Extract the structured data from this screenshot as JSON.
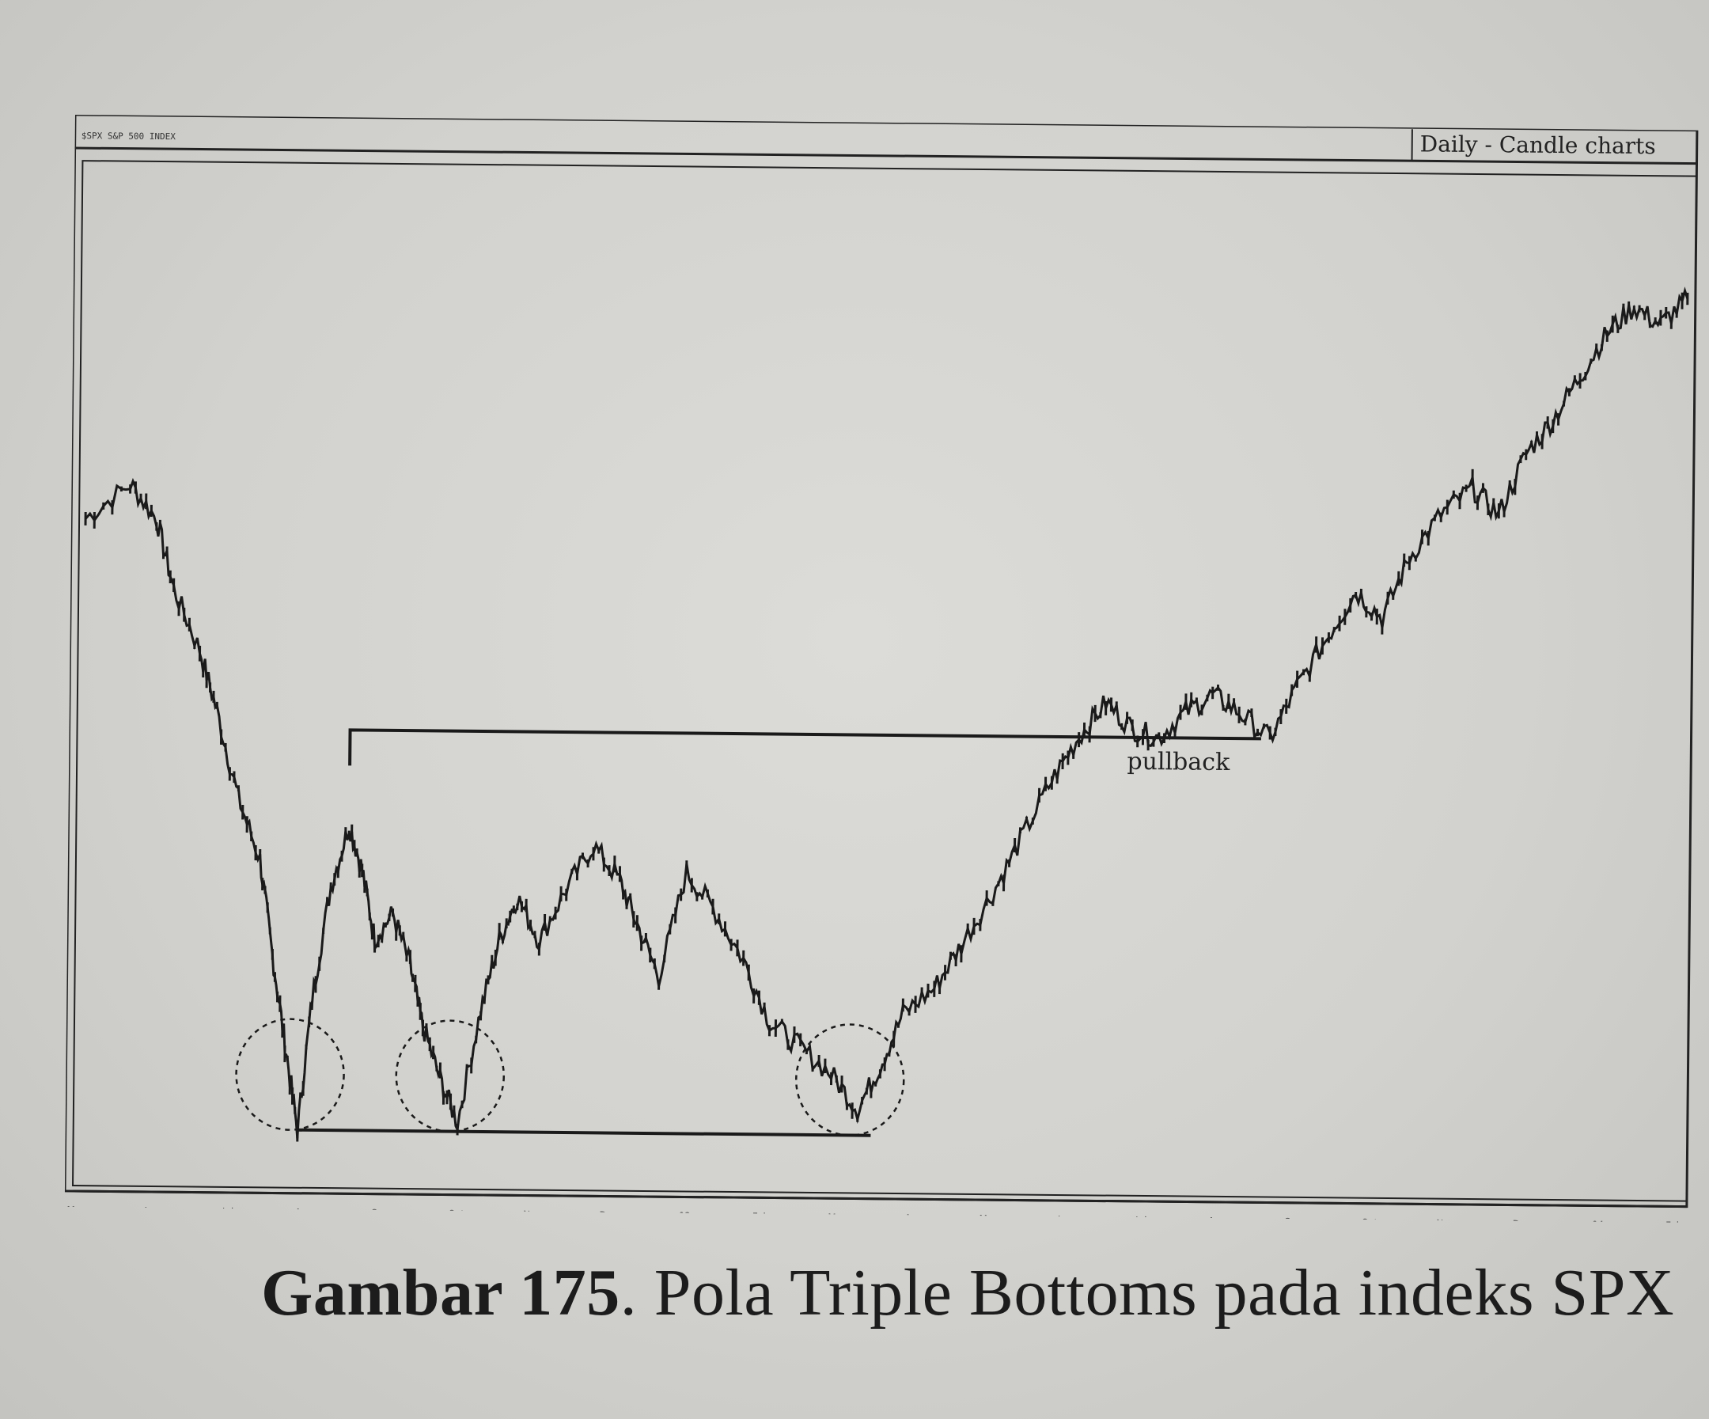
{
  "header": {
    "window_title": "$SPX S&P 500 INDEX",
    "chart_mode": "Daily - Candle charts"
  },
  "annotations": {
    "pullback": "pullback"
  },
  "caption": {
    "label": "Gambar 175",
    "text": ". Pola Triple Bottoms pada indeks SPX"
  },
  "colors": {
    "ink": "#1a1a1a",
    "paper": "#d6d6d2"
  },
  "chart_data": {
    "type": "line",
    "title": "",
    "xlabel": "",
    "ylabel": "",
    "categories": [
      "Mar",
      "Jun",
      "Jul",
      "Aug",
      "Sep",
      "Oct",
      "Nov",
      "Dec",
      "03",
      "Feb",
      "Mar",
      "Apr",
      "May",
      "Jun",
      "Jul",
      "Aug",
      "Sep",
      "Oct",
      "Nov",
      "Dec",
      "04",
      "Feb"
    ],
    "ylim": [
      0,
      100
    ],
    "grid": false,
    "series": [
      {
        "values": [
          [
            0,
            70
          ],
          [
            1,
            74
          ],
          [
            1.6,
            70
          ],
          [
            2,
            62
          ],
          [
            2.6,
            55
          ],
          [
            3,
            48
          ],
          [
            3.5,
            38
          ],
          [
            4,
            31
          ],
          [
            4.3,
            20
          ],
          [
            4.6,
            10
          ],
          [
            4.9,
            0
          ],
          [
            5.2,
            15
          ],
          [
            5.6,
            28
          ],
          [
            6,
            35
          ],
          [
            6.3,
            30
          ],
          [
            6.6,
            22
          ],
          [
            7,
            25
          ],
          [
            7.4,
            19
          ],
          [
            7.7,
            12
          ],
          [
            8.1,
            6
          ],
          [
            8.5,
            1
          ],
          [
            9,
            14
          ],
          [
            9.4,
            22
          ],
          [
            9.8,
            27
          ],
          [
            10.3,
            22
          ],
          [
            10.9,
            28
          ],
          [
            11.5,
            33
          ],
          [
            12.1,
            29
          ],
          [
            12.5,
            24
          ],
          [
            13,
            18
          ],
          [
            13.6,
            30
          ],
          [
            14.2,
            26
          ],
          [
            14.9,
            20
          ],
          [
            15.5,
            13
          ],
          [
            16.2,
            10
          ],
          [
            16.9,
            7
          ],
          [
            17.5,
            3
          ],
          [
            18,
            8
          ],
          [
            18.5,
            14
          ],
          [
            19.2,
            17
          ],
          [
            19.8,
            22
          ],
          [
            20.5,
            28
          ],
          [
            21.1,
            34
          ],
          [
            21.8,
            41
          ],
          [
            22.4,
            46
          ],
          [
            23,
            50
          ],
          [
            23.6,
            47
          ],
          [
            24.2,
            46
          ],
          [
            24.8,
            49
          ],
          [
            25.4,
            51
          ],
          [
            26,
            49
          ],
          [
            26.7,
            46
          ],
          [
            27.3,
            52
          ],
          [
            28,
            58
          ],
          [
            28.6,
            63
          ],
          [
            29.2,
            60
          ],
          [
            29.8,
            67
          ],
          [
            30.5,
            72
          ],
          [
            31.2,
            75
          ],
          [
            31.8,
            72
          ],
          [
            32.4,
            79
          ],
          [
            33,
            83
          ],
          [
            33.6,
            88
          ],
          [
            34.2,
            93
          ],
          [
            34.8,
            96
          ],
          [
            35.4,
            94
          ],
          [
            36,
            97
          ]
        ]
      }
    ],
    "triple_bottom_support": 0,
    "neckline_level": 46
  }
}
